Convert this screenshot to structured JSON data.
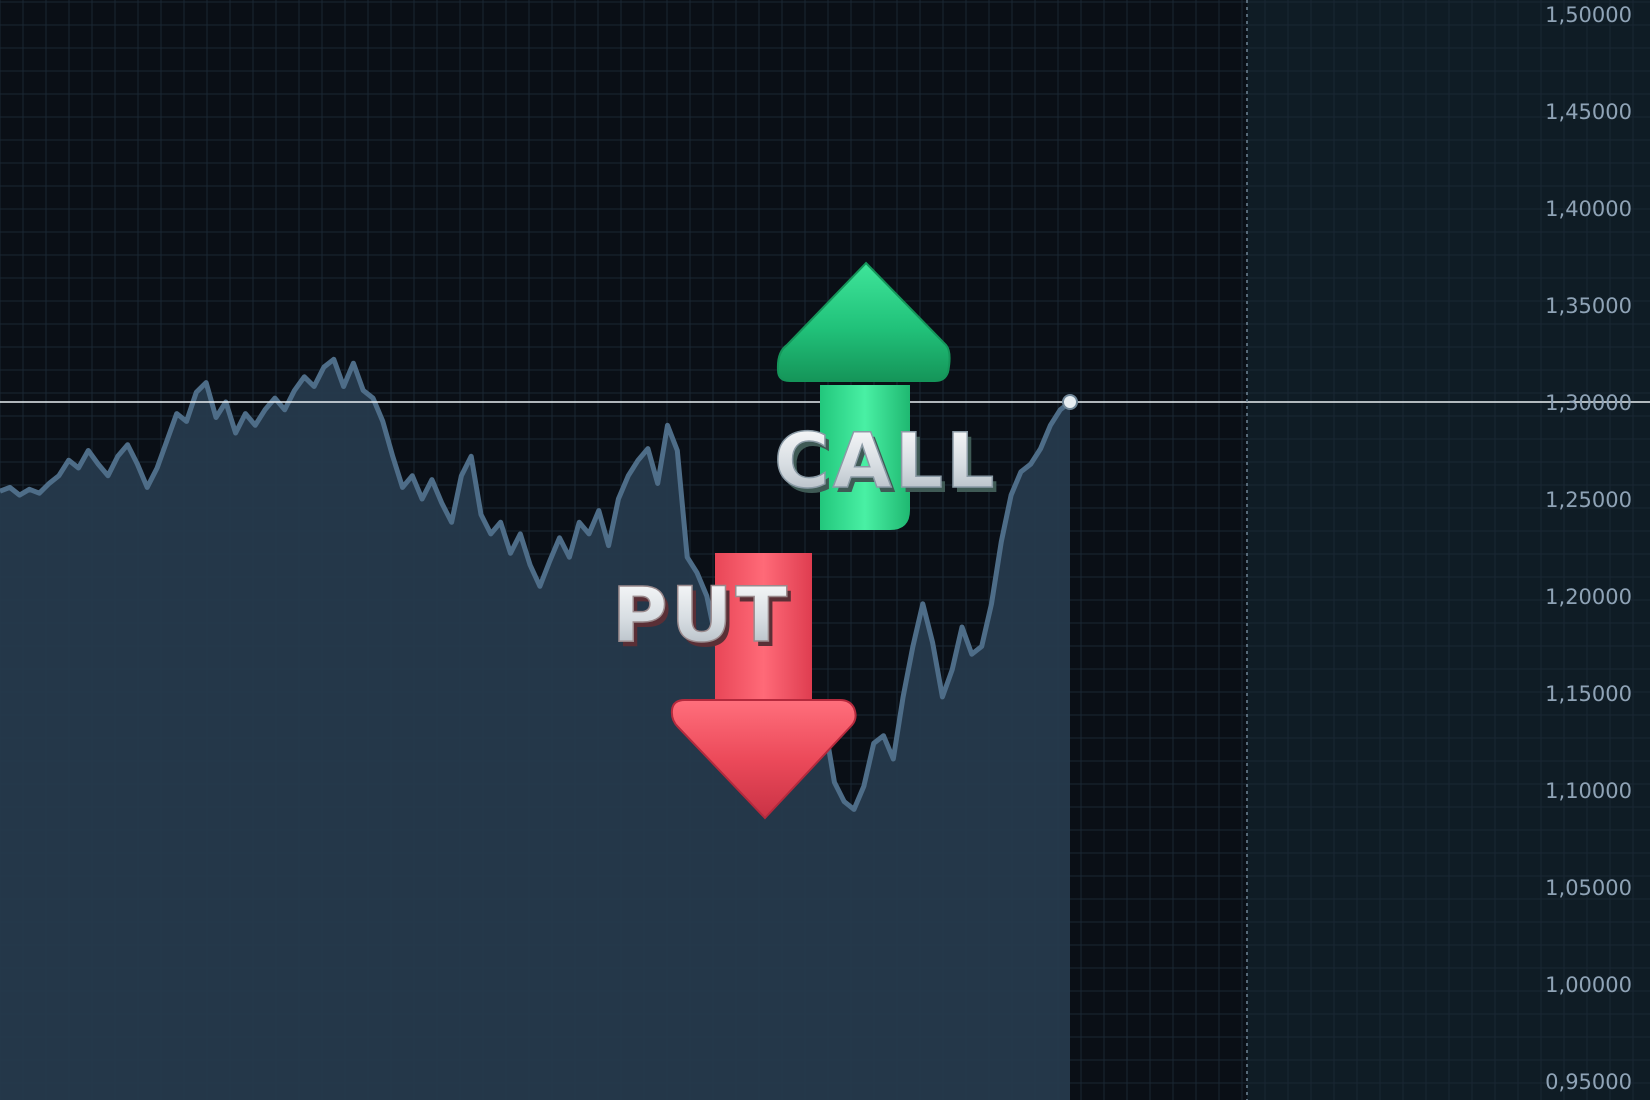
{
  "chart_data": {
    "type": "area",
    "title": "",
    "xlabel": "",
    "ylabel": "",
    "ylim": [
      0.95,
      1.5
    ],
    "yticks": [
      "1,50000",
      "1,45000",
      "1,40000",
      "1,35000",
      "1,30000",
      "1,25000",
      "1,20000",
      "1,15000",
      "1,10000",
      "1,05000",
      "1,00000",
      "0,95000"
    ],
    "ytick_values": [
      1.5,
      1.45,
      1.4,
      1.35,
      1.3,
      1.25,
      1.2,
      1.15,
      1.1,
      1.05,
      1.0,
      0.95
    ],
    "current_price": 1.3,
    "grid": true,
    "series": [
      {
        "values": [
          1.254,
          1.256,
          1.252,
          1.255,
          1.253,
          1.258,
          1.262,
          1.27,
          1.266,
          1.275,
          1.268,
          1.262,
          1.272,
          1.278,
          1.268,
          1.256,
          1.266,
          1.28,
          1.294,
          1.29,
          1.305,
          1.31,
          1.292,
          1.3,
          1.284,
          1.294,
          1.288,
          1.296,
          1.302,
          1.296,
          1.306,
          1.313,
          1.308,
          1.318,
          1.322,
          1.308,
          1.32,
          1.306,
          1.302,
          1.29,
          1.272,
          1.256,
          1.262,
          1.25,
          1.26,
          1.248,
          1.238,
          1.262,
          1.272,
          1.242,
          1.232,
          1.238,
          1.222,
          1.232,
          1.216,
          1.205,
          1.218,
          1.23,
          1.22,
          1.238,
          1.232,
          1.244,
          1.226,
          1.25,
          1.262,
          1.27,
          1.276,
          1.258,
          1.288,
          1.275,
          1.22,
          1.212,
          1.2,
          1.176,
          1.152,
          1.134,
          1.116,
          1.108,
          1.108,
          1.111,
          1.108,
          1.11,
          1.118,
          1.116,
          1.134,
          1.104,
          1.094,
          1.09,
          1.102,
          1.124,
          1.128,
          1.116,
          1.148,
          1.174,
          1.196,
          1.176,
          1.148,
          1.162,
          1.184,
          1.17,
          1.174,
          1.196,
          1.228,
          1.252,
          1.264,
          1.268,
          1.276,
          1.288,
          1.296,
          1.3
        ]
      }
    ],
    "annotations": [
      {
        "text": "CALL",
        "direction": "up",
        "color": "#2ed184"
      },
      {
        "text": "PUT",
        "direction": "down",
        "color": "#ee4f5f"
      }
    ]
  },
  "colors": {
    "background": "#0a0f16",
    "future_zone": "#0f1c25",
    "grid": "#1a2733",
    "area_fill": "#263a4c",
    "line": "#4e6d88",
    "price_line": "#e8eef2",
    "tick_text": "#8fa3b6"
  },
  "icons": {
    "call": "arrow-up-icon",
    "put": "arrow-down-icon"
  }
}
